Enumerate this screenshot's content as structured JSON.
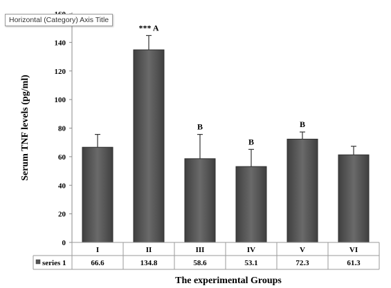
{
  "tooltip": "Horizontal (Category) Axis Title",
  "chart_data": {
    "type": "bar",
    "title": "",
    "xlabel": "The experimental Groups",
    "ylabel": "Serum TNF levels (pg/ml)",
    "ylim": [
      0,
      160
    ],
    "yticks": [
      0,
      20,
      40,
      60,
      80,
      100,
      120,
      140,
      160
    ],
    "grid": false,
    "legend_position": "data-table-left",
    "categories": [
      "I",
      "II",
      "III",
      "IV",
      "V",
      "VI"
    ],
    "series": [
      {
        "name": "series 1",
        "values": [
          66.6,
          134.8,
          58.6,
          53.1,
          72.3,
          61.3
        ],
        "error": [
          9,
          10,
          17,
          12,
          5,
          6
        ],
        "value_labels": [
          "66.6",
          "134.8",
          "58.6",
          "53.1",
          "72.3",
          "61.3"
        ]
      }
    ],
    "annotations": [
      "",
      "*** A",
      "B",
      "B",
      "B",
      ""
    ],
    "colors": {
      "bar_fill": "#555555",
      "bar_edge": "#2f2f2f",
      "error_bar": "#333333"
    }
  }
}
